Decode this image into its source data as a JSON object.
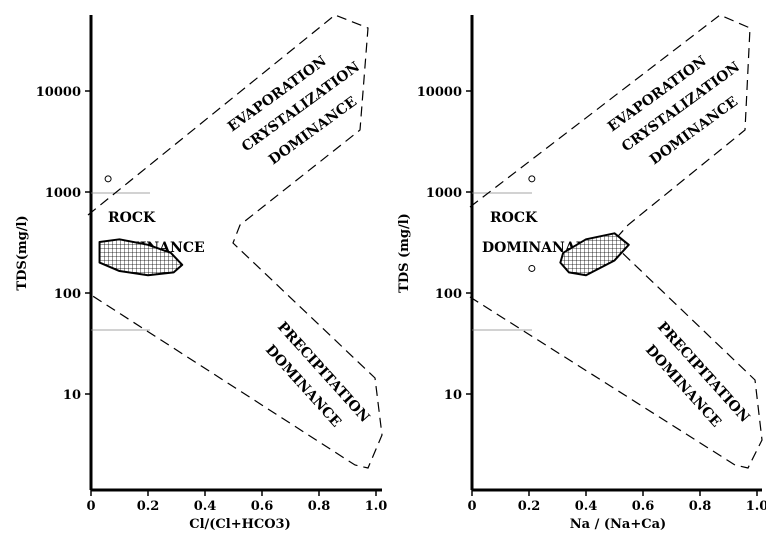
{
  "chart_data": [
    {
      "type": "scatter",
      "xlabel": "Cl/(Cl+HCO3)",
      "ylabel": "TDS(mg/l)",
      "xlim": [
        0,
        1.0
      ],
      "ylim": [
        1,
        60000
      ],
      "yscale": "log",
      "x_ticks": [
        "0",
        "0.2",
        "0.4",
        "0.6",
        "0.8",
        "1.0"
      ],
      "y_ticks": [
        "10",
        "100",
        "1000",
        "10000"
      ],
      "zones": [
        "EVAPORATION",
        "CRYSTALIZATION",
        "DOMINANCE",
        "ROCK",
        "DOMINANCE",
        "PRECIPITATION",
        "DOMINANCE"
      ],
      "outliers": [
        {
          "x": 0.06,
          "y": 1350
        }
      ],
      "cluster_region": [
        [
          0.03,
          320
        ],
        [
          0.1,
          340
        ],
        [
          0.2,
          300
        ],
        [
          0.28,
          250
        ],
        [
          0.32,
          190
        ],
        [
          0.29,
          160
        ],
        [
          0.2,
          150
        ],
        [
          0.1,
          165
        ],
        [
          0.03,
          200
        ]
      ]
    },
    {
      "type": "scatter",
      "xlabel": "Na / (Na+Ca)",
      "ylabel": "TDS (mg/l)",
      "xlim": [
        0,
        1.0
      ],
      "ylim": [
        1,
        60000
      ],
      "yscale": "log",
      "x_ticks": [
        "0",
        "0.2",
        "0.4",
        "0.6",
        "0.8",
        "1.0"
      ],
      "y_ticks": [
        "10",
        "100",
        "1000",
        "10000"
      ],
      "zones": [
        "EVAPORATION",
        "CRYSTALIZATION",
        "DOMINANCE",
        "ROCK",
        "DOMINANAE",
        "PRECIPITATION",
        "DOMINANCE"
      ],
      "outliers": [
        {
          "x": 0.21,
          "y": 1350
        },
        {
          "x": 0.21,
          "y": 175
        }
      ],
      "cluster_region": [
        [
          0.32,
          250
        ],
        [
          0.4,
          340
        ],
        [
          0.5,
          390
        ],
        [
          0.55,
          300
        ],
        [
          0.5,
          210
        ],
        [
          0.4,
          150
        ],
        [
          0.34,
          160
        ],
        [
          0.31,
          200
        ]
      ]
    }
  ]
}
